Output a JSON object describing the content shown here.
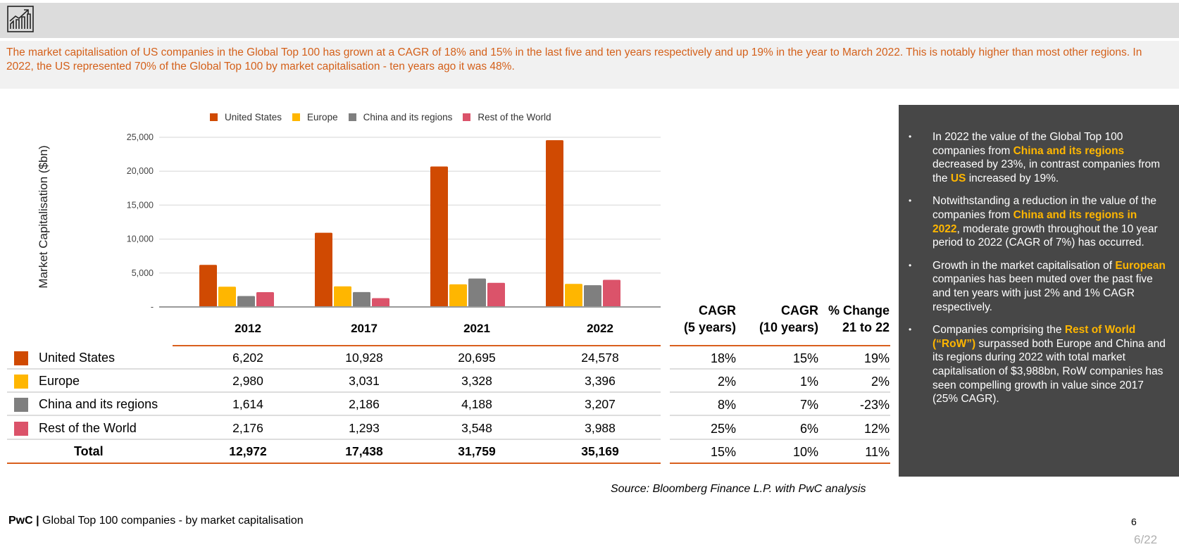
{
  "header": {
    "icon": "growth-chart-icon",
    "summary": "The market capitalisation of US companies in the Global Top 100 has grown at a CAGR of 18% and 15% in the last five and ten years respectively and up 19% in the year to March 2022. This is notably higher than most other regions. In 2022, the US represented 70% of the Global Top 100 by market capitalisation - ten years ago it was 48%."
  },
  "colors": {
    "accent": "#d95f1d",
    "summary_text": "#d4601a",
    "panel_bg": "#474747",
    "highlight": "#ffb600"
  },
  "chart_data": {
    "type": "bar",
    "title": "",
    "xlabel": "",
    "ylabel": "Market Capitalisation ($bn)",
    "categories": [
      "2012",
      "2017",
      "2021",
      "2022"
    ],
    "ylim": [
      0,
      25000
    ],
    "yticks": [
      0,
      5000,
      10000,
      15000,
      20000,
      25000
    ],
    "ytick_labels": [
      "-",
      "5,000",
      "10,000",
      "15,000",
      "20,000",
      "25,000"
    ],
    "grid": true,
    "legend_position": "top-center",
    "series": [
      {
        "name": "United States",
        "color": "#d04a02",
        "values": [
          6202,
          10928,
          20695,
          24578
        ]
      },
      {
        "name": "Europe",
        "color": "#ffb600",
        "values": [
          2980,
          3031,
          3328,
          3396
        ]
      },
      {
        "name": "China and its regions",
        "color": "#7f7f7f",
        "values": [
          1614,
          2186,
          4188,
          3207
        ]
      },
      {
        "name": "Rest of the World",
        "color": "#db536a",
        "values": [
          2176,
          1293,
          3548,
          3988
        ]
      }
    ]
  },
  "table": {
    "year_headers": [
      "2012",
      "2017",
      "2021",
      "2022"
    ],
    "rows": [
      {
        "label": "United States",
        "color": "#d04a02",
        "values": [
          "6,202",
          "10,928",
          "20,695",
          "24,578"
        ],
        "cagr5": "18%",
        "cagr10": "15%",
        "change": "19%"
      },
      {
        "label": "Europe",
        "color": "#ffb600",
        "values": [
          "2,980",
          "3,031",
          "3,328",
          "3,396"
        ],
        "cagr5": "2%",
        "cagr10": "1%",
        "change": "2%"
      },
      {
        "label": "China and its regions",
        "color": "#7f7f7f",
        "values": [
          "1,614",
          "2,186",
          "4,188",
          "3,207"
        ],
        "cagr5": "8%",
        "cagr10": "7%",
        "change": "-23%"
      },
      {
        "label": "Rest of the World",
        "color": "#db536a",
        "values": [
          "2,176",
          "1,293",
          "3,548",
          "3,988"
        ],
        "cagr5": "25%",
        "cagr10": "6%",
        "change": "12%"
      }
    ],
    "total": {
      "label": "Total",
      "values": [
        "12,972",
        "17,438",
        "31,759",
        "35,169"
      ],
      "cagr5": "15%",
      "cagr10": "10%",
      "change": "11%"
    },
    "pct_headers": [
      {
        "line1": "CAGR",
        "line2": "(5 years)"
      },
      {
        "line1": "CAGR",
        "line2": "(10 years)"
      },
      {
        "line1": "% Change",
        "line2": "21 to 22"
      }
    ]
  },
  "panel": {
    "bullets": [
      [
        {
          "t": "In 2022 the value of the Global Top 100 companies from "
        },
        {
          "t": "China and its regions",
          "hl": true
        },
        {
          "t": " decreased by 23%, in contrast companies from the "
        },
        {
          "t": "US",
          "hl": true
        },
        {
          "t": " increased by 19%."
        }
      ],
      [
        {
          "t": "Notwithstanding a reduction in the value of the companies from "
        },
        {
          "t": "China and its regions in 2022",
          "hl": true
        },
        {
          "t": ", moderate growth throughout the 10 year period to 2022 (CAGR of 7%) has occurred."
        }
      ],
      [
        {
          "t": "Growth in the market capitalisation of "
        },
        {
          "t": "European",
          "hl": true
        },
        {
          "t": " companies has been muted over the past five and ten years with just 2% and 1% CAGR respectively."
        }
      ],
      [
        {
          "t": "Companies comprising the "
        },
        {
          "t": "Rest of World (“RoW”)",
          "hl": true
        },
        {
          "t": " surpassed both Europe and China and its regions during 2022 with total market capitalisation of $3,988bn, RoW companies has seen compelling growth in value since 2017 (25% CAGR)."
        }
      ]
    ],
    "bullet_char": "•"
  },
  "source": "Source: Bloomberg Finance L.P. with PwC analysis",
  "footer": {
    "brand": "PwC |",
    "title": " Global Top 100 companies - by market capitalisation",
    "page_number": "6",
    "page_count": "6/22"
  }
}
